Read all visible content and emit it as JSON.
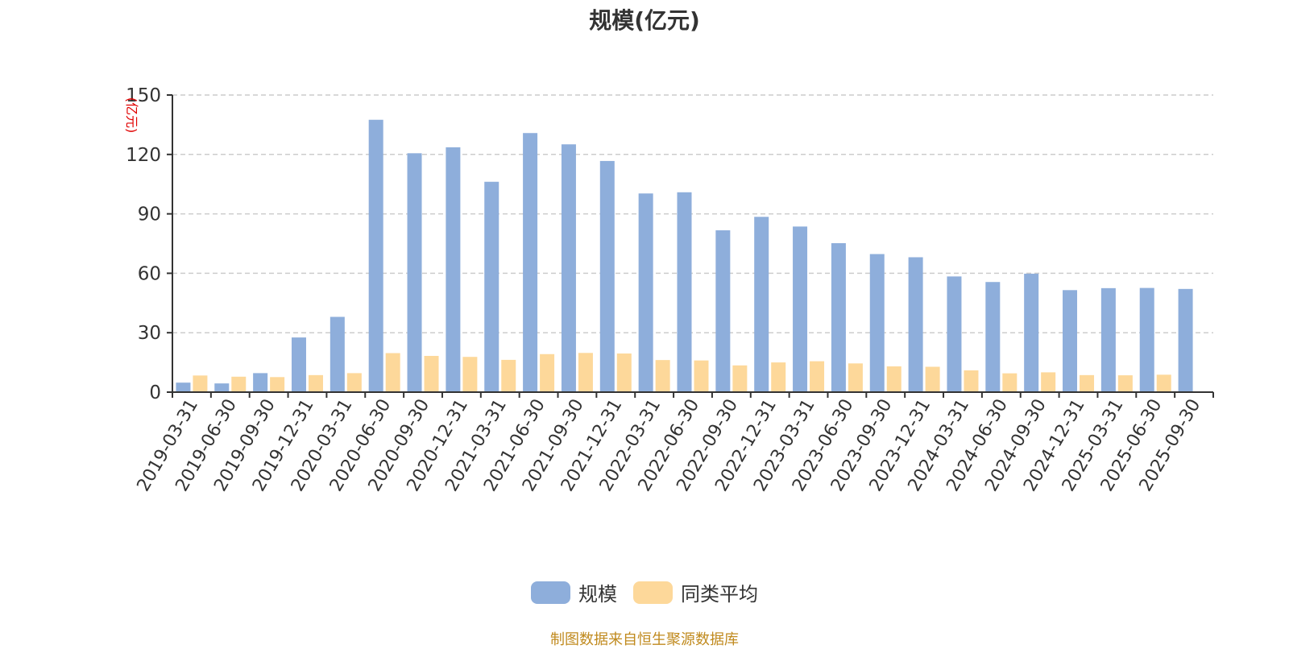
{
  "chart_data": {
    "type": "bar",
    "title": "规模(亿元)",
    "ylabel": "(亿元)",
    "ylim": [
      0,
      150
    ],
    "yticks": [
      0,
      30,
      60,
      90,
      120,
      150
    ],
    "grid": true,
    "legend_position": "bottom",
    "categories": [
      "2019-03-31",
      "2019-06-30",
      "2019-09-30",
      "2019-12-31",
      "2020-03-31",
      "2020-06-30",
      "2020-09-30",
      "2020-12-31",
      "2021-03-31",
      "2021-06-30",
      "2021-09-30",
      "2021-12-31",
      "2022-03-31",
      "2022-06-30",
      "2022-09-30",
      "2022-12-31",
      "2023-03-31",
      "2023-06-30",
      "2023-09-30",
      "2023-12-31",
      "2024-03-31",
      "2024-06-30",
      "2024-09-30",
      "2024-12-31",
      "2025-03-31",
      "2025-06-30",
      "2025-09-30"
    ],
    "series": [
      {
        "name": "规模",
        "color": "#8eaedb",
        "values": [
          4.8,
          4.4,
          9.6,
          27.6,
          38.0,
          137.5,
          120.6,
          123.6,
          106.2,
          130.8,
          125.1,
          116.7,
          100.3,
          100.9,
          81.7,
          88.5,
          83.6,
          75.2,
          69.7,
          68.1,
          58.4,
          55.6,
          59.8,
          51.5,
          52.5,
          52.6,
          52.1
        ]
      },
      {
        "name": "同类平均",
        "color": "#fdd89a",
        "values": [
          8.4,
          7.8,
          7.6,
          8.6,
          9.6,
          19.7,
          18.3,
          17.8,
          16.3,
          19.2,
          19.8,
          19.5,
          16.2,
          16.0,
          13.5,
          15.0,
          15.6,
          14.5,
          13.0,
          12.8,
          11.0,
          9.5,
          10.0,
          8.6,
          8.5,
          8.8,
          0
        ]
      }
    ]
  },
  "footer": "制图数据来自恒生聚源数据库"
}
